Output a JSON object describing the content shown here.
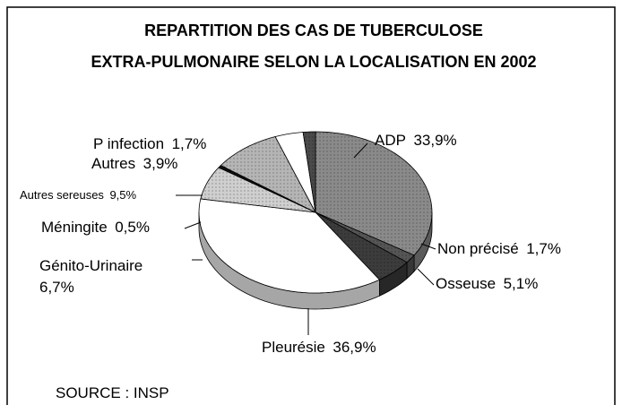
{
  "chart_data": {
    "type": "pie",
    "title": [
      "REPARTITION DES CAS DE TUBERCULOSE",
      "EXTRA-PULMONAIRE SELON LA LOCALISATION  EN 2002"
    ],
    "categories": [
      "ADP",
      "Non précisé",
      "Osseuse",
      "Pleurésie",
      "Génito-Urinaire",
      "Méningite",
      "Autres sereuses",
      "Autres",
      "P infection"
    ],
    "values": [
      33.9,
      1.7,
      5.1,
      36.9,
      6.7,
      0.5,
      9.5,
      3.9,
      1.7
    ],
    "value_labels": [
      "33,9%",
      "1,7%",
      "5,1%",
      "36,9%",
      "6,7%",
      "0,5%",
      "9,5%",
      "3,9%",
      "1,7%"
    ],
    "colors": [
      "#8a8a8a",
      "#555555",
      "#3c3c3c",
      "#ffffff",
      "#cfcfcf",
      "#111111",
      "#b5b5b5",
      "#ffffff",
      "#4a4a4a"
    ],
    "source": "SOURCE : INSP"
  }
}
